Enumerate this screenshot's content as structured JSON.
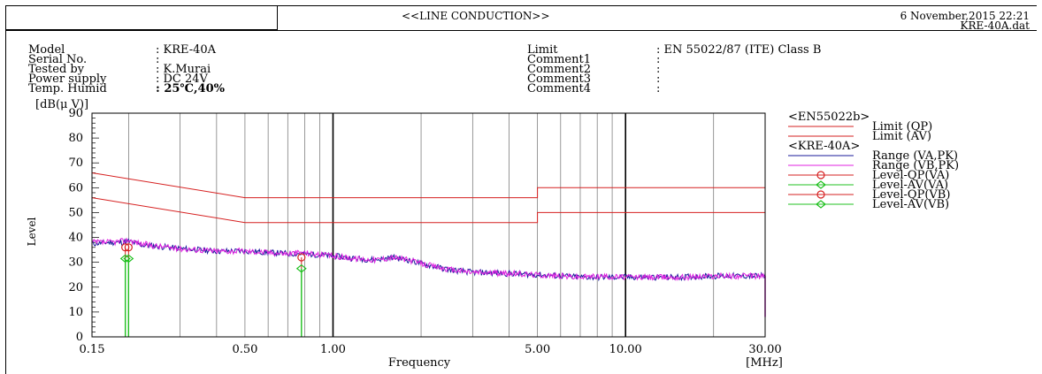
{
  "header": {
    "title": "<<LINE CONDUCTION>>",
    "datetime": "6 November,2015 22:21",
    "filename": "KRE-40A.dat"
  },
  "info_left": [
    {
      "label": "Model",
      "value": ": KRE-40A"
    },
    {
      "label": "Serial No.",
      "value": ":"
    },
    {
      "label": "Tested by",
      "value": ": K.Murai"
    },
    {
      "label": "Power supply",
      "value": ": DC 24V"
    },
    {
      "label": "Temp. Humid",
      "value": ": 25℃,40%"
    }
  ],
  "info_right": [
    {
      "label": "Limit",
      "value": ": EN 55022/87 (ITE) Class B"
    },
    {
      "label": "Comment1",
      "value": ":"
    },
    {
      "label": "Comment2",
      "value": ":"
    },
    {
      "label": "Comment3",
      "value": ":"
    },
    {
      "label": "Comment4",
      "value": ":"
    }
  ],
  "chart_data": {
    "type": "line",
    "x_scale": "log",
    "xlim": [
      0.15,
      30
    ],
    "ylim": [
      0,
      90
    ],
    "ylabel_unit": "[dB(μ V)]",
    "ylabel": "Level",
    "xlabel": "Frequency",
    "xunit": "[MHz]",
    "x_tick_labels": [
      "0.15",
      "0.50",
      "1.00",
      "5.00",
      "10.00",
      "30.00"
    ],
    "x_ticks": [
      0.15,
      0.5,
      1,
      5,
      10,
      30
    ],
    "y_ticks": [
      0,
      10,
      20,
      30,
      40,
      50,
      60,
      70,
      80,
      90
    ],
    "y_tick_labels": [
      "0",
      "10",
      "20",
      "30",
      "40",
      "50",
      "60",
      "70",
      "80",
      "90"
    ],
    "grid": true,
    "legend_position": "right",
    "legend": [
      {
        "group": "<EN55022b>"
      },
      {
        "name": "Limit (QP)",
        "color": "#d62020",
        "style": "line"
      },
      {
        "name": "Limit (AV)",
        "color": "#d62020",
        "style": "line"
      },
      {
        "group": "<KRE-40A>"
      },
      {
        "name": "Range (VA,PK)",
        "color": "#1a1a9a",
        "style": "line"
      },
      {
        "name": "Range (VB,PK)",
        "color": "#e020e0",
        "style": "line"
      },
      {
        "name": "Level-QP(VA)",
        "color": "#d62020",
        "style": "circle"
      },
      {
        "name": "Level-AV(VA)",
        "color": "#20c020",
        "style": "diamond"
      },
      {
        "name": "Level-QP(VB)",
        "color": "#d62020",
        "style": "circle"
      },
      {
        "name": "Level-AV(VB)",
        "color": "#20c020",
        "style": "diamond"
      }
    ],
    "limit_qp": {
      "x": [
        0.15,
        0.5,
        0.5,
        5,
        5,
        30
      ],
      "y": [
        66,
        56,
        56,
        56,
        60,
        60
      ]
    },
    "limit_av": {
      "x": [
        0.15,
        0.5,
        0.5,
        5,
        5,
        30
      ],
      "y": [
        56,
        46,
        46,
        46,
        50,
        50
      ]
    },
    "series": [
      {
        "name": "Range (VA,PK)",
        "color": "#1a1a9a",
        "x": [
          0.15,
          0.17,
          0.19,
          0.2,
          0.22,
          0.25,
          0.3,
          0.35,
          0.4,
          0.5,
          0.6,
          0.7,
          0.78,
          0.9,
          1.0,
          1.2,
          1.4,
          1.6,
          1.8,
          2.0,
          2.5,
          3.0,
          4.0,
          5.0,
          6.0,
          7.0,
          8.0,
          10.0,
          15.0,
          20.0,
          25.0,
          30.0
        ],
        "y": [
          37.5,
          38,
          38,
          38.5,
          37,
          36.5,
          35.5,
          35,
          34.5,
          34.5,
          34,
          33.5,
          33.5,
          33,
          32.5,
          31.5,
          31,
          32,
          31,
          29.5,
          27,
          26,
          25.5,
          25,
          24.5,
          24,
          24,
          24,
          24,
          24.5,
          24.5,
          24.5
        ]
      },
      {
        "name": "Range (VB,PK)",
        "color": "#e020e0",
        "x": [
          0.15,
          0.17,
          0.19,
          0.2,
          0.22,
          0.25,
          0.3,
          0.35,
          0.4,
          0.5,
          0.6,
          0.7,
          0.78,
          0.9,
          1.0,
          1.2,
          1.4,
          1.6,
          1.8,
          2.0,
          2.5,
          3.0,
          4.0,
          5.0,
          6.0,
          7.0,
          8.0,
          10.0,
          15.0,
          20.0,
          25.0,
          30.0
        ],
        "y": [
          38,
          38,
          38.5,
          39,
          37.5,
          36.5,
          35.5,
          35,
          34.5,
          34.5,
          34,
          33.5,
          34,
          33,
          32.5,
          31.5,
          31,
          32,
          31,
          29.5,
          27,
          26,
          25.5,
          25,
          24.5,
          24,
          24.5,
          24,
          24,
          24.5,
          24.5,
          24.5
        ]
      }
    ],
    "level_qp": {
      "x": [
        0.195,
        0.2,
        0.78
      ],
      "y": [
        36,
        36,
        32
      ]
    },
    "level_av": {
      "x": [
        0.195,
        0.2,
        0.78
      ],
      "y": [
        31.5,
        31.5,
        27.5
      ]
    }
  }
}
